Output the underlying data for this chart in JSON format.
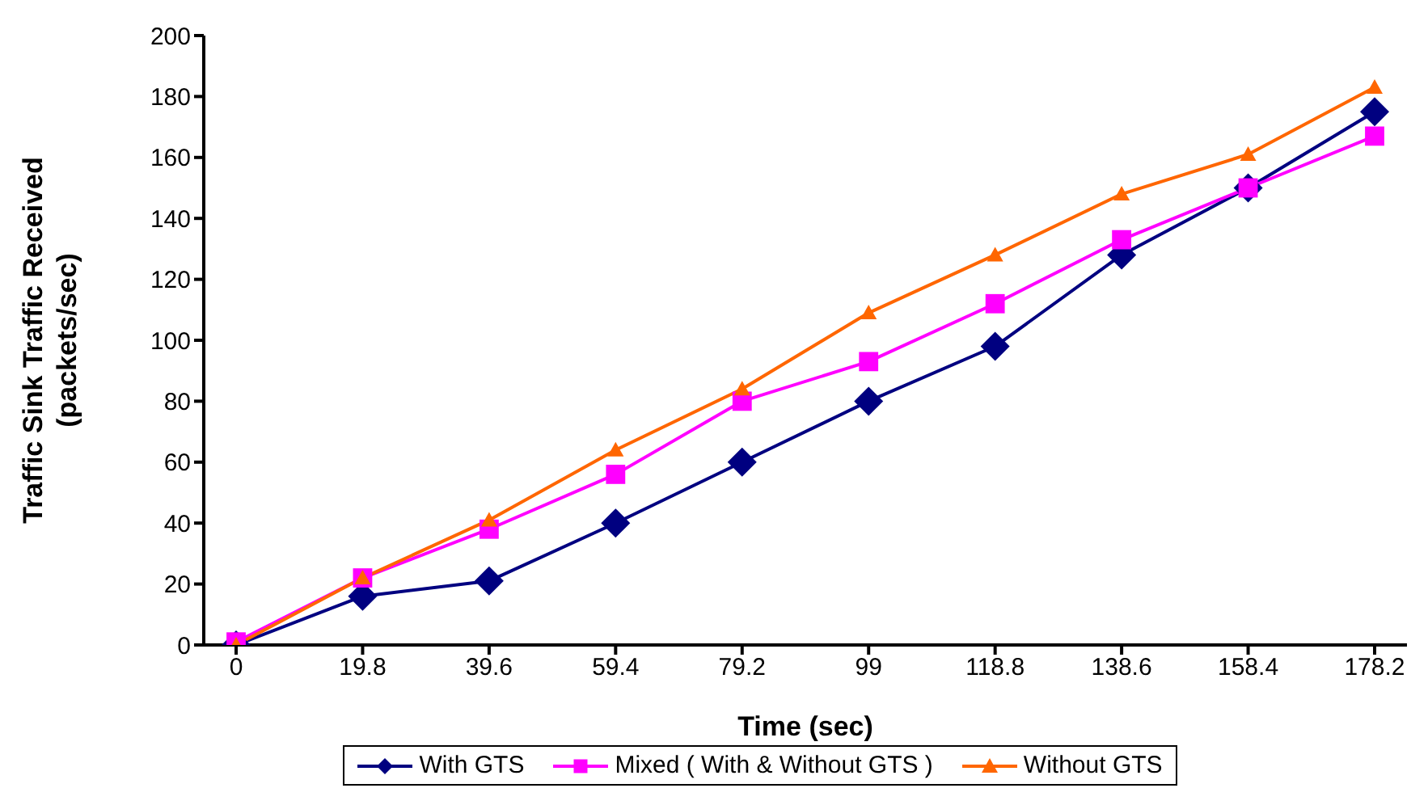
{
  "chart_data": {
    "type": "line",
    "xlabel": "Time (sec)",
    "ylabel": "Traffic Sink Traffic Received (packets/sec)",
    "categories": [
      "0",
      "19.8",
      "39.6",
      "59.4",
      "79.2",
      "99",
      "118.8",
      "138.6",
      "158.4",
      "178.2"
    ],
    "ylim": [
      0,
      200
    ],
    "yticks": [
      0,
      20,
      40,
      60,
      80,
      100,
      120,
      140,
      160,
      180,
      200
    ],
    "grid": false,
    "legend": "bottom",
    "series": [
      {
        "name": "With GTS",
        "color": "#000080",
        "marker": "diamond",
        "values": [
          0,
          16,
          21,
          40,
          60,
          80,
          98,
          128,
          150,
          175
        ]
      },
      {
        "name": "Mixed ( With & Without GTS )",
        "color": "#ff00ff",
        "marker": "square",
        "values": [
          1,
          22,
          38,
          56,
          80,
          93,
          112,
          133,
          150,
          167
        ]
      },
      {
        "name": "Without GTS",
        "color": "#ff6600",
        "marker": "triangle",
        "values": [
          0,
          22,
          41,
          64,
          84,
          109,
          128,
          148,
          161,
          183
        ]
      }
    ]
  }
}
